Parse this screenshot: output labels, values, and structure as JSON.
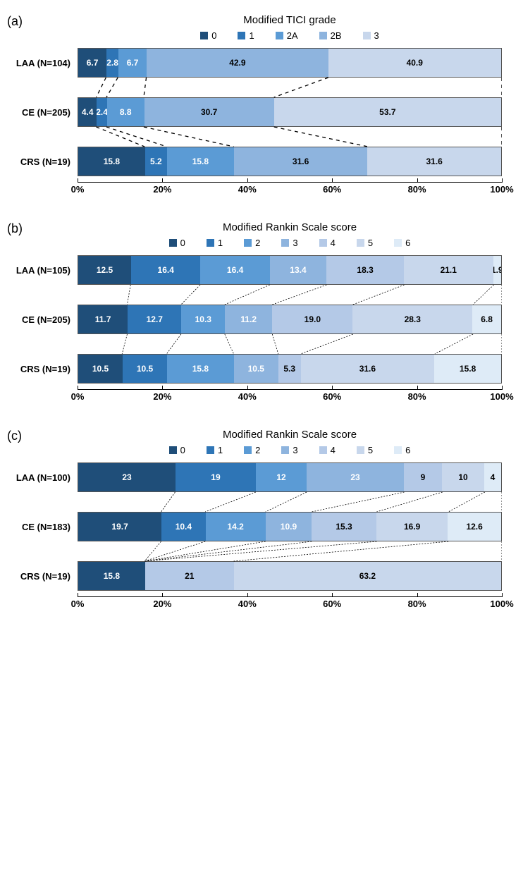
{
  "colors": {
    "c0": "#1f4e79",
    "c1": "#2e75b6",
    "c2": "#5b9bd5",
    "c3": "#8eb4de",
    "c4": "#b4c9e7",
    "c5": "#c8d7ec",
    "c6": "#deebf7"
  },
  "label_text_dark": "#222222",
  "panels": [
    {
      "id": "a",
      "panel_label": "(a)",
      "title": "Modified TICI grade",
      "legend": [
        "0",
        "1",
        "2A",
        "2B",
        "3"
      ],
      "legend_colors": [
        "c0",
        "c1",
        "c2",
        "c3",
        "c5"
      ],
      "xticks": [
        0,
        20,
        40,
        60,
        80,
        100
      ],
      "connector_dash": "5,5",
      "connector_weight": 1.3,
      "rows": [
        {
          "label": "LAA (N=104)",
          "segs": [
            {
              "v": 6.7,
              "c": "c0",
              "t": "6.7",
              "tc": "#fff"
            },
            {
              "v": 2.8,
              "c": "c1",
              "t": "2.8",
              "tc": "#fff"
            },
            {
              "v": 6.7,
              "c": "c2",
              "t": "6.7",
              "tc": "#fff"
            },
            {
              "v": 42.9,
              "c": "c3",
              "t": "42.9",
              "tc": "#000"
            },
            {
              "v": 40.9,
              "c": "c5",
              "t": "40.9",
              "tc": "#000"
            }
          ]
        },
        {
          "label": "CE (N=205)",
          "segs": [
            {
              "v": 4.4,
              "c": "c0",
              "t": "4.4",
              "tc": "#fff"
            },
            {
              "v": 2.4,
              "c": "c1",
              "t": "2.4",
              "tc": "#fff"
            },
            {
              "v": 8.8,
              "c": "c2",
              "t": "8.8",
              "tc": "#fff"
            },
            {
              "v": 30.7,
              "c": "c3",
              "t": "30.7",
              "tc": "#000"
            },
            {
              "v": 53.7,
              "c": "c5",
              "t": "53.7",
              "tc": "#000"
            }
          ]
        },
        {
          "label": "CRS (N=19)",
          "segs": [
            {
              "v": 15.8,
              "c": "c0",
              "t": "15.8",
              "tc": "#fff"
            },
            {
              "v": 5.2,
              "c": "c1",
              "t": "5.2",
              "tc": "#fff"
            },
            {
              "v": 15.8,
              "c": "c2",
              "t": "15.8",
              "tc": "#fff"
            },
            {
              "v": 31.6,
              "c": "c3",
              "t": "31.6",
              "tc": "#000"
            },
            {
              "v": 31.6,
              "c": "c5",
              "t": "31.6",
              "tc": "#000"
            }
          ]
        }
      ]
    },
    {
      "id": "b",
      "panel_label": "(b)",
      "title": "Modified Rankin Scale score",
      "legend": [
        "0",
        "1",
        "2",
        "3",
        "4",
        "5",
        "6"
      ],
      "legend_colors": [
        "c0",
        "c1",
        "c2",
        "c3",
        "c4",
        "c5",
        "c6"
      ],
      "xticks": [
        0,
        20,
        40,
        60,
        80,
        100
      ],
      "connector_dash": "2,2",
      "connector_weight": 0.8,
      "rows": [
        {
          "label": "LAA (N=105)",
          "segs": [
            {
              "v": 12.5,
              "c": "c0",
              "t": "12.5",
              "tc": "#fff"
            },
            {
              "v": 16.4,
              "c": "c1",
              "t": "16.4",
              "tc": "#fff"
            },
            {
              "v": 16.4,
              "c": "c2",
              "t": "16.4",
              "tc": "#fff"
            },
            {
              "v": 13.4,
              "c": "c3",
              "t": "13.4",
              "tc": "#fff"
            },
            {
              "v": 18.3,
              "c": "c4",
              "t": "18.3",
              "tc": "#000"
            },
            {
              "v": 21.1,
              "c": "c5",
              "t": "21.1",
              "tc": "#000"
            },
            {
              "v": 1.9,
              "c": "c6",
              "t": "1.9",
              "tc": "#000"
            }
          ]
        },
        {
          "label": "CE (N=205)",
          "segs": [
            {
              "v": 11.7,
              "c": "c0",
              "t": "11.7",
              "tc": "#fff"
            },
            {
              "v": 12.7,
              "c": "c1",
              "t": "12.7",
              "tc": "#fff"
            },
            {
              "v": 10.3,
              "c": "c2",
              "t": "10.3",
              "tc": "#fff"
            },
            {
              "v": 11.2,
              "c": "c3",
              "t": "11.2",
              "tc": "#fff"
            },
            {
              "v": 19.0,
              "c": "c4",
              "t": "19.0",
              "tc": "#000"
            },
            {
              "v": 28.3,
              "c": "c5",
              "t": "28.3",
              "tc": "#000"
            },
            {
              "v": 6.8,
              "c": "c6",
              "t": "6.8",
              "tc": "#000"
            }
          ]
        },
        {
          "label": "CRS (N=19)",
          "segs": [
            {
              "v": 10.5,
              "c": "c0",
              "t": "10.5",
              "tc": "#fff"
            },
            {
              "v": 10.5,
              "c": "c1",
              "t": "10.5",
              "tc": "#fff"
            },
            {
              "v": 15.8,
              "c": "c2",
              "t": "15.8",
              "tc": "#fff"
            },
            {
              "v": 10.5,
              "c": "c3",
              "t": "10.5",
              "tc": "#fff"
            },
            {
              "v": 5.3,
              "c": "c4",
              "t": "5.3",
              "tc": "#000"
            },
            {
              "v": 31.6,
              "c": "c5",
              "t": "31.6",
              "tc": "#000"
            },
            {
              "v": 15.8,
              "c": "c6",
              "t": "15.8",
              "tc": "#000"
            }
          ]
        }
      ]
    },
    {
      "id": "c",
      "panel_label": "(c)",
      "title": "Modified Rankin Scale score",
      "legend": [
        "0",
        "1",
        "2",
        "3",
        "4",
        "5",
        "6"
      ],
      "legend_colors": [
        "c0",
        "c1",
        "c2",
        "c3",
        "c4",
        "c5",
        "c6"
      ],
      "xticks": [
        0,
        20,
        40,
        60,
        80,
        100
      ],
      "connector_dash": "2,2",
      "connector_weight": 0.8,
      "rows": [
        {
          "label": "LAA (N=100)",
          "segs": [
            {
              "v": 23,
              "c": "c0",
              "t": "23",
              "tc": "#fff"
            },
            {
              "v": 19,
              "c": "c1",
              "t": "19",
              "tc": "#fff"
            },
            {
              "v": 12,
              "c": "c2",
              "t": "12",
              "tc": "#fff"
            },
            {
              "v": 23,
              "c": "c3",
              "t": "23",
              "tc": "#fff"
            },
            {
              "v": 9,
              "c": "c4",
              "t": "9",
              "tc": "#000"
            },
            {
              "v": 10,
              "c": "c5",
              "t": "10",
              "tc": "#000"
            },
            {
              "v": 4,
              "c": "c6",
              "t": "4",
              "tc": "#000"
            }
          ]
        },
        {
          "label": "CE (N=183)",
          "segs": [
            {
              "v": 19.7,
              "c": "c0",
              "t": "19.7",
              "tc": "#fff"
            },
            {
              "v": 10.4,
              "c": "c1",
              "t": "10.4",
              "tc": "#fff"
            },
            {
              "v": 14.2,
              "c": "c2",
              "t": "14.2",
              "tc": "#fff"
            },
            {
              "v": 10.9,
              "c": "c3",
              "t": "10.9",
              "tc": "#fff"
            },
            {
              "v": 15.3,
              "c": "c4",
              "t": "15.3",
              "tc": "#000"
            },
            {
              "v": 16.9,
              "c": "c5",
              "t": "16.9",
              "tc": "#000"
            },
            {
              "v": 12.6,
              "c": "c6",
              "t": "12.6",
              "tc": "#000"
            }
          ]
        },
        {
          "label": "CRS (N=19)",
          "segs": [
            {
              "v": 15.8,
              "c": "c0",
              "t": "15.8",
              "tc": "#fff"
            },
            {
              "v": 21,
              "c": "c4",
              "t": "21",
              "tc": "#000"
            },
            {
              "v": 63.2,
              "c": "c5",
              "t": "63.2",
              "tc": "#000"
            }
          ],
          "boundaries_for_connectors": [
            15.8,
            15.8,
            15.8,
            15.8,
            15.8,
            36.8,
            100
          ]
        }
      ]
    }
  ]
}
